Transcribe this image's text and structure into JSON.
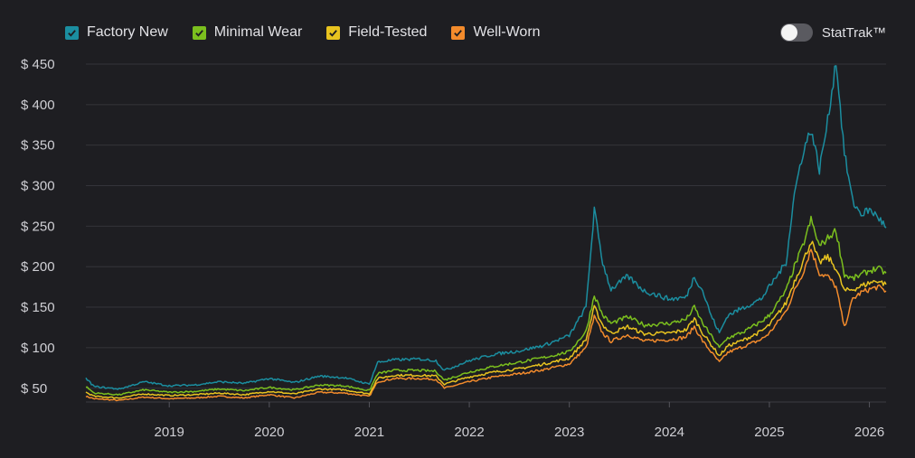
{
  "legend": [
    {
      "label": "Factory New",
      "color": "#1b8ea0"
    },
    {
      "label": "Minimal Wear",
      "color": "#7bbf1e"
    },
    {
      "label": "Field-Tested",
      "color": "#e8c31f"
    },
    {
      "label": "Well-Worn",
      "color": "#f38b2c"
    }
  ],
  "toggle": {
    "label": "StatTrak™",
    "state": "off"
  },
  "chart_data": {
    "type": "line",
    "xlim": [
      "2018-03",
      "2026-03"
    ],
    "ylim": [
      33,
      460
    ],
    "y_ticks": [
      50,
      100,
      150,
      200,
      250,
      300,
      350,
      400,
      450
    ],
    "y_tick_labels": [
      "$ 50",
      "$ 100",
      "$ 150",
      "$ 200",
      "$ 250",
      "$ 300",
      "$ 350",
      "$ 400",
      "$ 450"
    ],
    "x_tick_labels": [
      "2019",
      "2020",
      "2021",
      "2022",
      "2023",
      "2024",
      "2025",
      "2026"
    ],
    "grid": "horizontal",
    "legend_position": "top-left",
    "series": [
      {
        "name": "Factory New",
        "color": "#1b8ea0",
        "points": [
          [
            "2018-03",
            62
          ],
          [
            "2018-04",
            52
          ],
          [
            "2018-07",
            49
          ],
          [
            "2018-10",
            58
          ],
          [
            "2019-01",
            53
          ],
          [
            "2019-04",
            54
          ],
          [
            "2019-07",
            58
          ],
          [
            "2019-10",
            56
          ],
          [
            "2020-01",
            62
          ],
          [
            "2020-04",
            57
          ],
          [
            "2020-07",
            65
          ],
          [
            "2020-10",
            63
          ],
          [
            "2021-01",
            55
          ],
          [
            "2021-02",
            82
          ],
          [
            "2021-04",
            85
          ],
          [
            "2021-07",
            86
          ],
          [
            "2021-09",
            84
          ],
          [
            "2021-10",
            72
          ],
          [
            "2022-01",
            84
          ],
          [
            "2022-04",
            92
          ],
          [
            "2022-07",
            96
          ],
          [
            "2022-10",
            103
          ],
          [
            "2023-01",
            115
          ],
          [
            "2023-03",
            150
          ],
          [
            "2023-04",
            270
          ],
          [
            "2023-05",
            205
          ],
          [
            "2023-06",
            172
          ],
          [
            "2023-08",
            188
          ],
          [
            "2023-10",
            170
          ],
          [
            "2024-01",
            160
          ],
          [
            "2024-03",
            162
          ],
          [
            "2024-04",
            188
          ],
          [
            "2024-05",
            170
          ],
          [
            "2024-06",
            140
          ],
          [
            "2024-07",
            118
          ],
          [
            "2024-08",
            140
          ],
          [
            "2024-10",
            150
          ],
          [
            "2024-12",
            160
          ],
          [
            "2025-01",
            175
          ],
          [
            "2025-03",
            205
          ],
          [
            "2025-04",
            290
          ],
          [
            "2025-05",
            340
          ],
          [
            "2025-06",
            370
          ],
          [
            "2025-07",
            320
          ],
          [
            "2025-08",
            380
          ],
          [
            "2025-09",
            455
          ],
          [
            "2025-10",
            340
          ],
          [
            "2025-11",
            280
          ],
          [
            "2025-12",
            265
          ],
          [
            "2026-01",
            270
          ],
          [
            "2026-02",
            262
          ],
          [
            "2026-03",
            248
          ]
        ]
      },
      {
        "name": "Minimal Wear",
        "color": "#7bbf1e",
        "points": [
          [
            "2018-03",
            52
          ],
          [
            "2018-04",
            44
          ],
          [
            "2018-07",
            42
          ],
          [
            "2018-10",
            48
          ],
          [
            "2019-01",
            45
          ],
          [
            "2019-04",
            46
          ],
          [
            "2019-07",
            49
          ],
          [
            "2019-10",
            47
          ],
          [
            "2020-01",
            51
          ],
          [
            "2020-04",
            48
          ],
          [
            "2020-07",
            54
          ],
          [
            "2020-10",
            53
          ],
          [
            "2021-01",
            47
          ],
          [
            "2021-02",
            68
          ],
          [
            "2021-04",
            72
          ],
          [
            "2021-07",
            72
          ],
          [
            "2021-09",
            71
          ],
          [
            "2021-10",
            60
          ],
          [
            "2022-01",
            70
          ],
          [
            "2022-04",
            77
          ],
          [
            "2022-07",
            82
          ],
          [
            "2022-10",
            88
          ],
          [
            "2023-01",
            95
          ],
          [
            "2023-03",
            120
          ],
          [
            "2023-04",
            165
          ],
          [
            "2023-05",
            140
          ],
          [
            "2023-06",
            130
          ],
          [
            "2023-08",
            138
          ],
          [
            "2023-10",
            128
          ],
          [
            "2024-01",
            130
          ],
          [
            "2024-03",
            135
          ],
          [
            "2024-04",
            150
          ],
          [
            "2024-05",
            130
          ],
          [
            "2024-06",
            115
          ],
          [
            "2024-07",
            100
          ],
          [
            "2024-08",
            112
          ],
          [
            "2024-10",
            120
          ],
          [
            "2024-12",
            132
          ],
          [
            "2025-01",
            140
          ],
          [
            "2025-03",
            170
          ],
          [
            "2025-04",
            200
          ],
          [
            "2025-05",
            225
          ],
          [
            "2025-06",
            258
          ],
          [
            "2025-07",
            225
          ],
          [
            "2025-08",
            235
          ],
          [
            "2025-09",
            245
          ],
          [
            "2025-10",
            190
          ],
          [
            "2025-11",
            185
          ],
          [
            "2025-12",
            190
          ],
          [
            "2026-01",
            195
          ],
          [
            "2026-02",
            198
          ],
          [
            "2026-03",
            192
          ]
        ]
      },
      {
        "name": "Field-Tested",
        "color": "#e8c31f",
        "points": [
          [
            "2018-03",
            45
          ],
          [
            "2018-04",
            40
          ],
          [
            "2018-07",
            38
          ],
          [
            "2018-10",
            43
          ],
          [
            "2019-01",
            41
          ],
          [
            "2019-04",
            42
          ],
          [
            "2019-07",
            44
          ],
          [
            "2019-10",
            42
          ],
          [
            "2020-01",
            46
          ],
          [
            "2020-04",
            43
          ],
          [
            "2020-07",
            49
          ],
          [
            "2020-10",
            48
          ],
          [
            "2021-01",
            43
          ],
          [
            "2021-02",
            62
          ],
          [
            "2021-04",
            66
          ],
          [
            "2021-07",
            66
          ],
          [
            "2021-09",
            65
          ],
          [
            "2021-10",
            55
          ],
          [
            "2022-01",
            64
          ],
          [
            "2022-04",
            70
          ],
          [
            "2022-07",
            74
          ],
          [
            "2022-10",
            80
          ],
          [
            "2023-01",
            87
          ],
          [
            "2023-03",
            110
          ],
          [
            "2023-04",
            150
          ],
          [
            "2023-05",
            128
          ],
          [
            "2023-06",
            118
          ],
          [
            "2023-08",
            126
          ],
          [
            "2023-10",
            117
          ],
          [
            "2024-01",
            118
          ],
          [
            "2024-03",
            122
          ],
          [
            "2024-04",
            136
          ],
          [
            "2024-05",
            118
          ],
          [
            "2024-06",
            104
          ],
          [
            "2024-07",
            90
          ],
          [
            "2024-08",
            102
          ],
          [
            "2024-10",
            110
          ],
          [
            "2024-12",
            120
          ],
          [
            "2025-01",
            128
          ],
          [
            "2025-03",
            155
          ],
          [
            "2025-04",
            182
          ],
          [
            "2025-05",
            205
          ],
          [
            "2025-06",
            232
          ],
          [
            "2025-07",
            205
          ],
          [
            "2025-08",
            212
          ],
          [
            "2025-09",
            198
          ],
          [
            "2025-10",
            170
          ],
          [
            "2025-11",
            172
          ],
          [
            "2025-12",
            176
          ],
          [
            "2026-01",
            180
          ],
          [
            "2026-02",
            183
          ],
          [
            "2026-03",
            178
          ]
        ]
      },
      {
        "name": "Well-Worn",
        "color": "#f38b2c",
        "points": [
          [
            "2018-03",
            40
          ],
          [
            "2018-04",
            37
          ],
          [
            "2018-07",
            35
          ],
          [
            "2018-10",
            39
          ],
          [
            "2019-01",
            37
          ],
          [
            "2019-04",
            38
          ],
          [
            "2019-07",
            40
          ],
          [
            "2019-10",
            38
          ],
          [
            "2020-01",
            42
          ],
          [
            "2020-04",
            38
          ],
          [
            "2020-07",
            45
          ],
          [
            "2020-10",
            44
          ],
          [
            "2021-01",
            40
          ],
          [
            "2021-02",
            58
          ],
          [
            "2021-04",
            62
          ],
          [
            "2021-07",
            62
          ],
          [
            "2021-09",
            61
          ],
          [
            "2021-10",
            50
          ],
          [
            "2022-01",
            58
          ],
          [
            "2022-04",
            64
          ],
          [
            "2022-07",
            68
          ],
          [
            "2022-10",
            73
          ],
          [
            "2023-01",
            80
          ],
          [
            "2023-03",
            100
          ],
          [
            "2023-04",
            138
          ],
          [
            "2023-05",
            118
          ],
          [
            "2023-06",
            108
          ],
          [
            "2023-08",
            116
          ],
          [
            "2023-10",
            108
          ],
          [
            "2024-01",
            110
          ],
          [
            "2024-03",
            113
          ],
          [
            "2024-04",
            126
          ],
          [
            "2024-05",
            108
          ],
          [
            "2024-06",
            95
          ],
          [
            "2024-07",
            82
          ],
          [
            "2024-08",
            94
          ],
          [
            "2024-10",
            102
          ],
          [
            "2024-12",
            110
          ],
          [
            "2025-01",
            118
          ],
          [
            "2025-03",
            145
          ],
          [
            "2025-04",
            170
          ],
          [
            "2025-05",
            192
          ],
          [
            "2025-06",
            222
          ],
          [
            "2025-07",
            192
          ],
          [
            "2025-08",
            188
          ],
          [
            "2025-09",
            175
          ],
          [
            "2025-10",
            125
          ],
          [
            "2025-11",
            160
          ],
          [
            "2025-12",
            168
          ],
          [
            "2026-01",
            172
          ],
          [
            "2026-02",
            175
          ],
          [
            "2026-03",
            170
          ]
        ]
      }
    ]
  }
}
